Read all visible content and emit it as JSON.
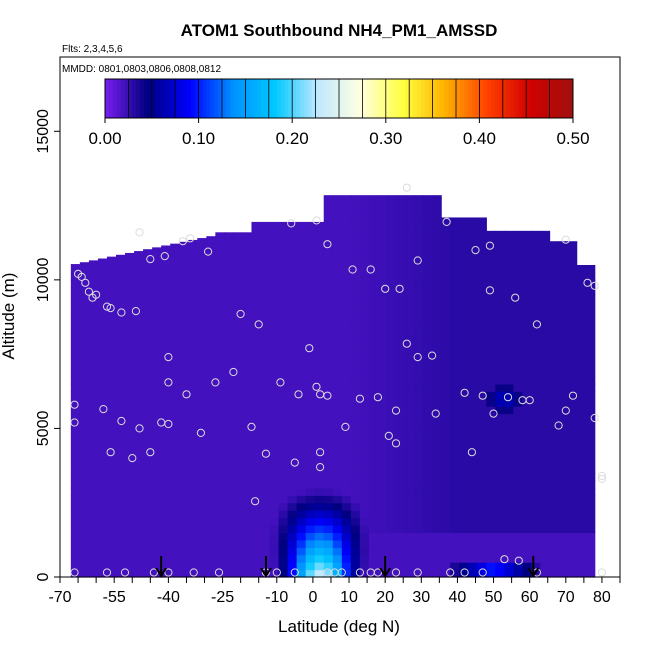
{
  "chart_data": {
    "type": "heatmap",
    "title": "ATOM1 Southbound NH4_PM1_AMSSD",
    "notes": [
      "Flts: 2,3,4,5,6",
      "MMDD: 0801,0803,0806,0808,0812"
    ],
    "xlabel": "Latitude (deg N)",
    "ylabel": "Altitude (m)",
    "xlim": [
      -70,
      85
    ],
    "ylim": [
      0,
      17500
    ],
    "x_ticks": [
      -70,
      -55,
      -40,
      -25,
      -10,
      0,
      10,
      20,
      30,
      40,
      50,
      60,
      70,
      80
    ],
    "x_tick_labels": [
      "-70",
      "-55",
      "-40",
      "-25",
      "-10",
      "0",
      "10",
      "20",
      "30",
      "40",
      "50",
      "60",
      "70",
      "80"
    ],
    "y_ticks": [
      0,
      5000,
      10000,
      15000
    ],
    "y_tick_labels": [
      "0",
      "5000",
      "10000",
      "15000"
    ],
    "colorbar": {
      "range": [
        0,
        0.5
      ],
      "ticks": [
        0.0,
        0.1,
        0.2,
        0.3,
        0.4,
        0.5
      ],
      "tick_labels": [
        "0.00",
        "0.10",
        "0.20",
        "0.30",
        "0.40",
        "0.50"
      ],
      "stops": [
        "#7a1ef0",
        "#00007f",
        "#0000ff",
        "#0090ff",
        "#00c8ff",
        "#c0e8ff",
        "#ffffe0",
        "#ffff40",
        "#ffb000",
        "#ff4000",
        "#d00000",
        "#a01010"
      ]
    },
    "background_value": 0.02,
    "features": [
      {
        "name": "equatorial-boundary-layer-plume",
        "lat_center": 2,
        "lat_width": 8,
        "alt_top": 3500,
        "peak": 0.24
      },
      {
        "name": "north-boundary-layer-band",
        "lat_center": 50,
        "lat_width": 12,
        "alt_top": 500,
        "peak": 0.1
      },
      {
        "name": "mid-altitude-patch",
        "lat_center": 53,
        "lat_width": 5,
        "alt_center": 6000,
        "peak": 0.08
      }
    ],
    "profile_markers_lat": [
      -42,
      -13,
      20,
      61
    ],
    "sample_points": [
      [
        -65,
        10200
      ],
      [
        -64,
        10100
      ],
      [
        -63,
        9900
      ],
      [
        -62,
        9600
      ],
      [
        -61,
        9400
      ],
      [
        -60,
        9500
      ],
      [
        -57,
        9100
      ],
      [
        -56,
        9050
      ],
      [
        -53,
        8900
      ],
      [
        -49,
        8950
      ],
      [
        -48,
        11600
      ],
      [
        -45,
        10700
      ],
      [
        -41,
        10800
      ],
      [
        -36,
        11300
      ],
      [
        -34,
        11400
      ],
      [
        -29,
        10950
      ],
      [
        -20,
        8850
      ],
      [
        -15,
        8500
      ],
      [
        -6,
        11900
      ],
      [
        1,
        12000
      ],
      [
        4,
        11200
      ],
      [
        11,
        10350
      ],
      [
        16,
        10350
      ],
      [
        20,
        9700
      ],
      [
        24,
        9700
      ],
      [
        29,
        10650
      ],
      [
        37,
        11950
      ],
      [
        45,
        11000
      ],
      [
        49,
        11150
      ],
      [
        49,
        9650
      ],
      [
        56,
        9400
      ],
      [
        62,
        8500
      ],
      [
        70,
        11350
      ],
      [
        76,
        9900
      ],
      [
        78,
        9800
      ],
      [
        26,
        13100
      ],
      [
        -66,
        5800
      ],
      [
        -66,
        5200
      ],
      [
        -58,
        5650
      ],
      [
        -56,
        4200
      ],
      [
        -53,
        5250
      ],
      [
        -50,
        4000
      ],
      [
        -48,
        5000
      ],
      [
        -45,
        4200
      ],
      [
        -42,
        5200
      ],
      [
        -40,
        5150
      ],
      [
        -40,
        6550
      ],
      [
        -40,
        7400
      ],
      [
        -35,
        6150
      ],
      [
        -31,
        4850
      ],
      [
        -27,
        6550
      ],
      [
        -22,
        6900
      ],
      [
        -17,
        5050
      ],
      [
        -9,
        6550
      ],
      [
        -4,
        6150
      ],
      [
        -1,
        7700
      ],
      [
        1,
        6400
      ],
      [
        2,
        6150
      ],
      [
        4,
        6100
      ],
      [
        9,
        5050
      ],
      [
        13,
        6000
      ],
      [
        18,
        6050
      ],
      [
        23,
        5600
      ],
      [
        23,
        4500
      ],
      [
        21,
        4750
      ],
      [
        26,
        7850
      ],
      [
        29,
        7400
      ],
      [
        33,
        7450
      ],
      [
        34,
        5500
      ],
      [
        42,
        6200
      ],
      [
        44,
        4200
      ],
      [
        47,
        6100
      ],
      [
        50,
        5500
      ],
      [
        54,
        6050
      ],
      [
        58,
        5950
      ],
      [
        60,
        5950
      ],
      [
        68,
        5100
      ],
      [
        70,
        5600
      ],
      [
        72,
        6100
      ],
      [
        78,
        5350
      ],
      [
        80,
        3400
      ],
      [
        80,
        3300
      ],
      [
        -66,
        150
      ],
      [
        -57,
        150
      ],
      [
        -52,
        150
      ],
      [
        -44,
        150
      ],
      [
        -40,
        150
      ],
      [
        -33,
        150
      ],
      [
        -26,
        150
      ],
      [
        -16,
        2550
      ],
      [
        -13,
        4150
      ],
      [
        -13,
        150
      ],
      [
        -10,
        150
      ],
      [
        -5,
        3850
      ],
      [
        -5,
        150
      ],
      [
        2,
        4200
      ],
      [
        2,
        3700
      ],
      [
        4,
        150
      ],
      [
        6,
        150
      ],
      [
        8,
        150
      ],
      [
        13,
        150
      ],
      [
        16,
        150
      ],
      [
        18,
        150
      ],
      [
        23,
        150
      ],
      [
        29,
        150
      ],
      [
        38,
        150
      ],
      [
        42,
        150
      ],
      [
        47,
        150
      ],
      [
        53,
        600
      ],
      [
        57,
        550
      ],
      [
        62,
        150
      ],
      [
        80,
        150
      ]
    ]
  }
}
